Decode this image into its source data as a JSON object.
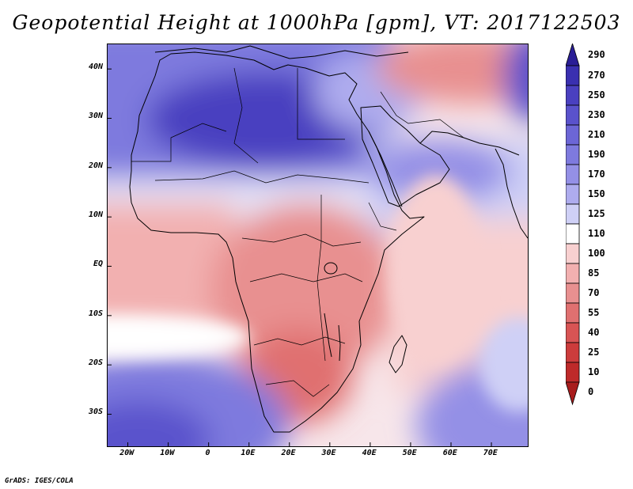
{
  "title": "Geopotential Height at 1000hPa [gpm], VT: 2017122503",
  "credit": "GrADS: IGES/COLA",
  "map": {
    "lon_range": [
      -25,
      79
    ],
    "lat_range": [
      -36.5,
      45
    ],
    "x_ticks": [
      {
        "lon": -20,
        "label": "20W"
      },
      {
        "lon": -10,
        "label": "10W"
      },
      {
        "lon": 0,
        "label": "0"
      },
      {
        "lon": 10,
        "label": "10E"
      },
      {
        "lon": 20,
        "label": "20E"
      },
      {
        "lon": 30,
        "label": "30E"
      },
      {
        "lon": 40,
        "label": "40E"
      },
      {
        "lon": 50,
        "label": "50E"
      },
      {
        "lon": 60,
        "label": "60E"
      },
      {
        "lon": 70,
        "label": "70E"
      }
    ],
    "y_ticks": [
      {
        "lat": 40,
        "label": "40N"
      },
      {
        "lat": 30,
        "label": "30N"
      },
      {
        "lat": 20,
        "label": "20N"
      },
      {
        "lat": 10,
        "label": "10N"
      },
      {
        "lat": 0,
        "label": "EQ"
      },
      {
        "lat": -10,
        "label": "10S"
      },
      {
        "lat": -20,
        "label": "20S"
      },
      {
        "lat": -30,
        "label": "30S"
      }
    ]
  },
  "colorbar": {
    "levels": [
      "290",
      "270",
      "250",
      "230",
      "210",
      "190",
      "170",
      "150",
      "125",
      "110",
      "100",
      "85",
      "70",
      "55",
      "40",
      "25",
      "10",
      "0"
    ],
    "colors": [
      "#2a1e96",
      "#3a30b0",
      "#4a40c0",
      "#5a52cc",
      "#6c66d6",
      "#7e7ade",
      "#9490e6",
      "#aeacee",
      "#cfd0f6",
      "#ffffff",
      "#f8d0d0",
      "#f2b0b0",
      "#e89090",
      "#e07070",
      "#d85454",
      "#cc3c3c",
      "#be2a2a",
      "#a81c1c"
    ]
  }
}
